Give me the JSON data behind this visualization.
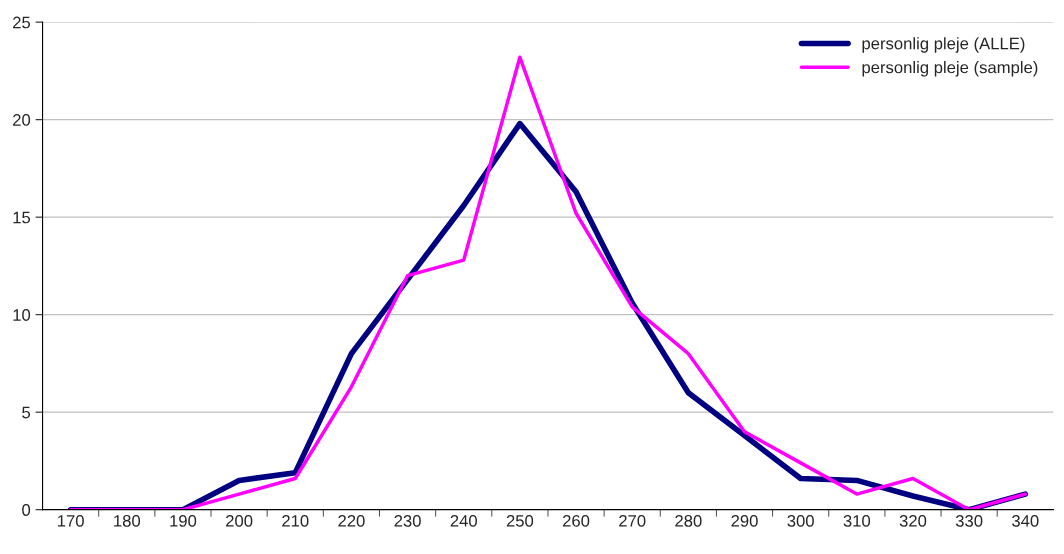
{
  "chart_data": {
    "type": "line",
    "categories": [
      "170",
      "180",
      "190",
      "200",
      "210",
      "220",
      "230",
      "240",
      "250",
      "260",
      "270",
      "280",
      "290",
      "300",
      "310",
      "320",
      "330",
      "340"
    ],
    "series": [
      {
        "name": "personlig pleje (ALLE)",
        "color": "#000080",
        "values": [
          0,
          0,
          0,
          1.5,
          1.9,
          8.0,
          11.8,
          15.6,
          19.8,
          16.3,
          10.6,
          6.0,
          3.8,
          1.6,
          1.5,
          0.7,
          0,
          0.8
        ]
      },
      {
        "name": "personlig pleje (sample)",
        "color": "#ff00ff",
        "values": [
          0,
          0,
          0,
          0.8,
          1.6,
          6.3,
          12.0,
          12.8,
          23.2,
          15.2,
          10.4,
          8.0,
          4.0,
          2.4,
          0.8,
          1.6,
          0,
          0.8
        ]
      }
    ],
    "ylim": [
      0,
      25
    ],
    "yticks": [
      0,
      5,
      10,
      15,
      20,
      25
    ],
    "grid": "y",
    "legend": "top right",
    "marker": "none",
    "line_style": "solid"
  }
}
